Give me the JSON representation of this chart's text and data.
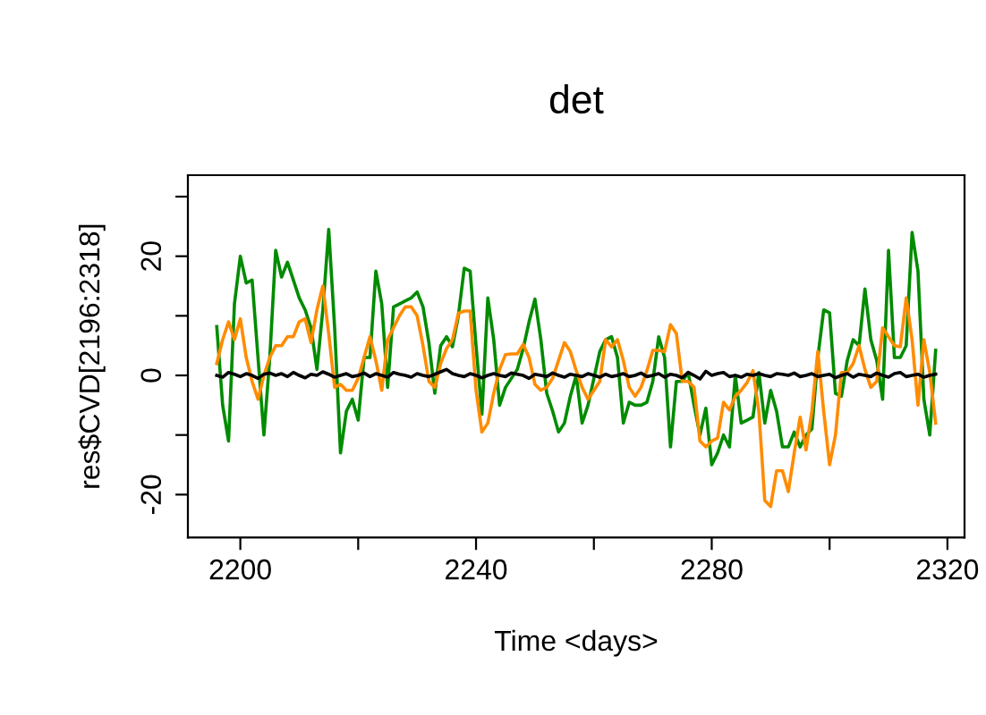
{
  "chart_data": {
    "type": "line",
    "title": "det",
    "xlabel": "Time <days>",
    "ylabel": "res$CVD[2196:2318]",
    "x": [
      2196,
      2197,
      2198,
      2199,
      2200,
      2201,
      2202,
      2203,
      2204,
      2205,
      2206,
      2207,
      2208,
      2209,
      2210,
      2211,
      2212,
      2213,
      2214,
      2215,
      2216,
      2217,
      2218,
      2219,
      2220,
      2221,
      2222,
      2223,
      2224,
      2225,
      2226,
      2227,
      2228,
      2229,
      2230,
      2231,
      2232,
      2233,
      2234,
      2235,
      2236,
      2237,
      2238,
      2239,
      2240,
      2241,
      2242,
      2243,
      2244,
      2245,
      2246,
      2247,
      2248,
      2249,
      2250,
      2251,
      2252,
      2253,
      2254,
      2255,
      2256,
      2257,
      2258,
      2259,
      2260,
      2261,
      2262,
      2263,
      2264,
      2265,
      2266,
      2267,
      2268,
      2269,
      2270,
      2271,
      2272,
      2273,
      2274,
      2275,
      2276,
      2277,
      2278,
      2279,
      2280,
      2281,
      2282,
      2283,
      2284,
      2285,
      2286,
      2287,
      2288,
      2289,
      2290,
      2291,
      2292,
      2293,
      2294,
      2295,
      2296,
      2297,
      2298,
      2299,
      2300,
      2301,
      2302,
      2303,
      2304,
      2305,
      2306,
      2307,
      2308,
      2309,
      2310,
      2311,
      2312,
      2313,
      2314,
      2315,
      2316,
      2317,
      2318
    ],
    "series": [
      {
        "color": "#008b00",
        "values": [
          8.2,
          -5,
          -11,
          12,
          20,
          15.5,
          16,
          3,
          -10,
          3,
          21,
          16.5,
          19,
          16,
          13,
          11,
          8,
          1,
          11,
          24.5,
          8,
          -13,
          -6,
          -4,
          -7.5,
          3,
          3,
          17.5,
          12,
          -2,
          11.5,
          12,
          12.5,
          13,
          14,
          11.5,
          5.5,
          -3,
          5,
          6.5,
          4.8,
          10,
          18,
          17.5,
          5,
          -6.5,
          13,
          6,
          -5,
          -2,
          -0.5,
          1,
          4.5,
          9,
          12.8,
          6,
          -3,
          -6,
          -9.5,
          -8,
          -3.5,
          0,
          -8,
          -5,
          -0.5,
          4,
          6,
          6.5,
          3,
          -8,
          -4.5,
          -5,
          -5,
          -4.5,
          -1,
          6.5,
          3,
          -12,
          -1,
          -1,
          0.5,
          -5,
          -10,
          -5.5,
          -15,
          -13,
          -10,
          -12,
          0,
          -8,
          -7.5,
          -7,
          0.5,
          -8,
          -2.5,
          -6,
          -12,
          -12,
          -9.5,
          -12,
          -10,
          -9,
          3,
          11,
          10.5,
          -3,
          -3.5,
          2.5,
          6,
          5,
          14.5,
          6,
          2.5,
          -4,
          21,
          3,
          3,
          5,
          24,
          17.5,
          -4,
          -10,
          4.2
        ]
      },
      {
        "color": "#ff8c00",
        "values": [
          2,
          6,
          9,
          6,
          9.5,
          3,
          -1,
          -4,
          0,
          3,
          5,
          5,
          6.5,
          6.5,
          9,
          9.5,
          5.5,
          11,
          15,
          7,
          -2,
          -1.5,
          -2.5,
          -2.5,
          -0.5,
          3,
          6.5,
          2.5,
          -2.5,
          6,
          8,
          10,
          11.5,
          11.5,
          10,
          5,
          -1,
          -2,
          2,
          4.5,
          6,
          10.4,
          10.8,
          10.8,
          -2.5,
          -9.5,
          -8,
          -3,
          1,
          3.5,
          3.6,
          3.6,
          5.2,
          3,
          -1.5,
          -2.5,
          -2,
          -0.5,
          2.5,
          5.5,
          4,
          0.8,
          -2,
          -4,
          -2.5,
          -1,
          6,
          4.8,
          6,
          2.5,
          -2,
          -3.5,
          -2,
          0.8,
          4.2,
          4.2,
          4,
          8.5,
          7,
          -1,
          -1,
          -2,
          -11,
          -12,
          -11,
          -10.5,
          -4.5,
          -5.8,
          -3.5,
          -2.5,
          -1.2,
          0.8,
          -6,
          -21,
          -22,
          -16,
          -16,
          -19.5,
          -13,
          -7,
          -12.5,
          -6,
          4,
          -6,
          -15,
          -10,
          0.5,
          0.5,
          2,
          5,
          1,
          -2,
          -1,
          8,
          6.5,
          5,
          4.8,
          13,
          6,
          -5,
          6,
          0.5,
          -8
        ]
      },
      {
        "color": "#000000",
        "values": [
          0,
          -0.3,
          0.5,
          0.2,
          -0.2,
          0.3,
          0,
          -0.5,
          0.2,
          0.4,
          0,
          0.3,
          -0.2,
          0.5,
          0,
          -0.4,
          0.2,
          0,
          0.6,
          0.2,
          -0.3,
          0,
          0.3,
          -0.2,
          0,
          0.4,
          -0.2,
          0.3,
          0,
          -0.3,
          0.5,
          0.2,
          0,
          -0.3,
          0.3,
          0,
          -0.2,
          0.2,
          0.6,
          1,
          0.3,
          0,
          -0.2,
          0.3,
          0,
          -0.4,
          0,
          0.3,
          0,
          -0.2,
          0.4,
          0.2,
          0,
          -0.5,
          0.2,
          0,
          -0.2,
          0.4,
          0,
          -0.3,
          0.2,
          0,
          -0.2,
          0.3,
          0,
          -0.3,
          0.2,
          -0.2,
          0,
          0.3,
          -0.2,
          0,
          0.4,
          -0.2,
          0,
          0.3,
          -0.3,
          0.2,
          0,
          -0.4,
          0.5,
          0,
          -0.6,
          0.7,
          0,
          0.3,
          0.5,
          -0.2,
          0,
          -0.3,
          0.2,
          0,
          0.3,
          0,
          -0.2,
          0.3,
          0.2,
          0,
          0.4,
          -0.2,
          0,
          0.3,
          -0.2,
          0,
          0.2,
          -0.4,
          0,
          0.3,
          -0.3,
          0.2,
          0,
          -0.2,
          0.4,
          0,
          -0.3,
          0.3,
          0.5,
          -0.2,
          0,
          0.2,
          -0.3,
          0,
          0.2
        ]
      }
    ],
    "xlim": [
      2191.1,
      2322.9
    ],
    "xticks": [
      2200,
      {
        "value": 2220,
        "label": null
      },
      2240,
      {
        "value": 2260,
        "label": null
      },
      2280,
      {
        "value": 2300,
        "label": null
      },
      2320
    ],
    "ylim": [
      -27.2,
      33.6
    ],
    "yticks": [
      -20,
      {
        "value": -10,
        "label": null
      },
      0,
      {
        "value": 10,
        "label": null
      },
      20,
      {
        "value": 30,
        "label": null
      }
    ],
    "line_style": "solid",
    "marker": "none"
  }
}
